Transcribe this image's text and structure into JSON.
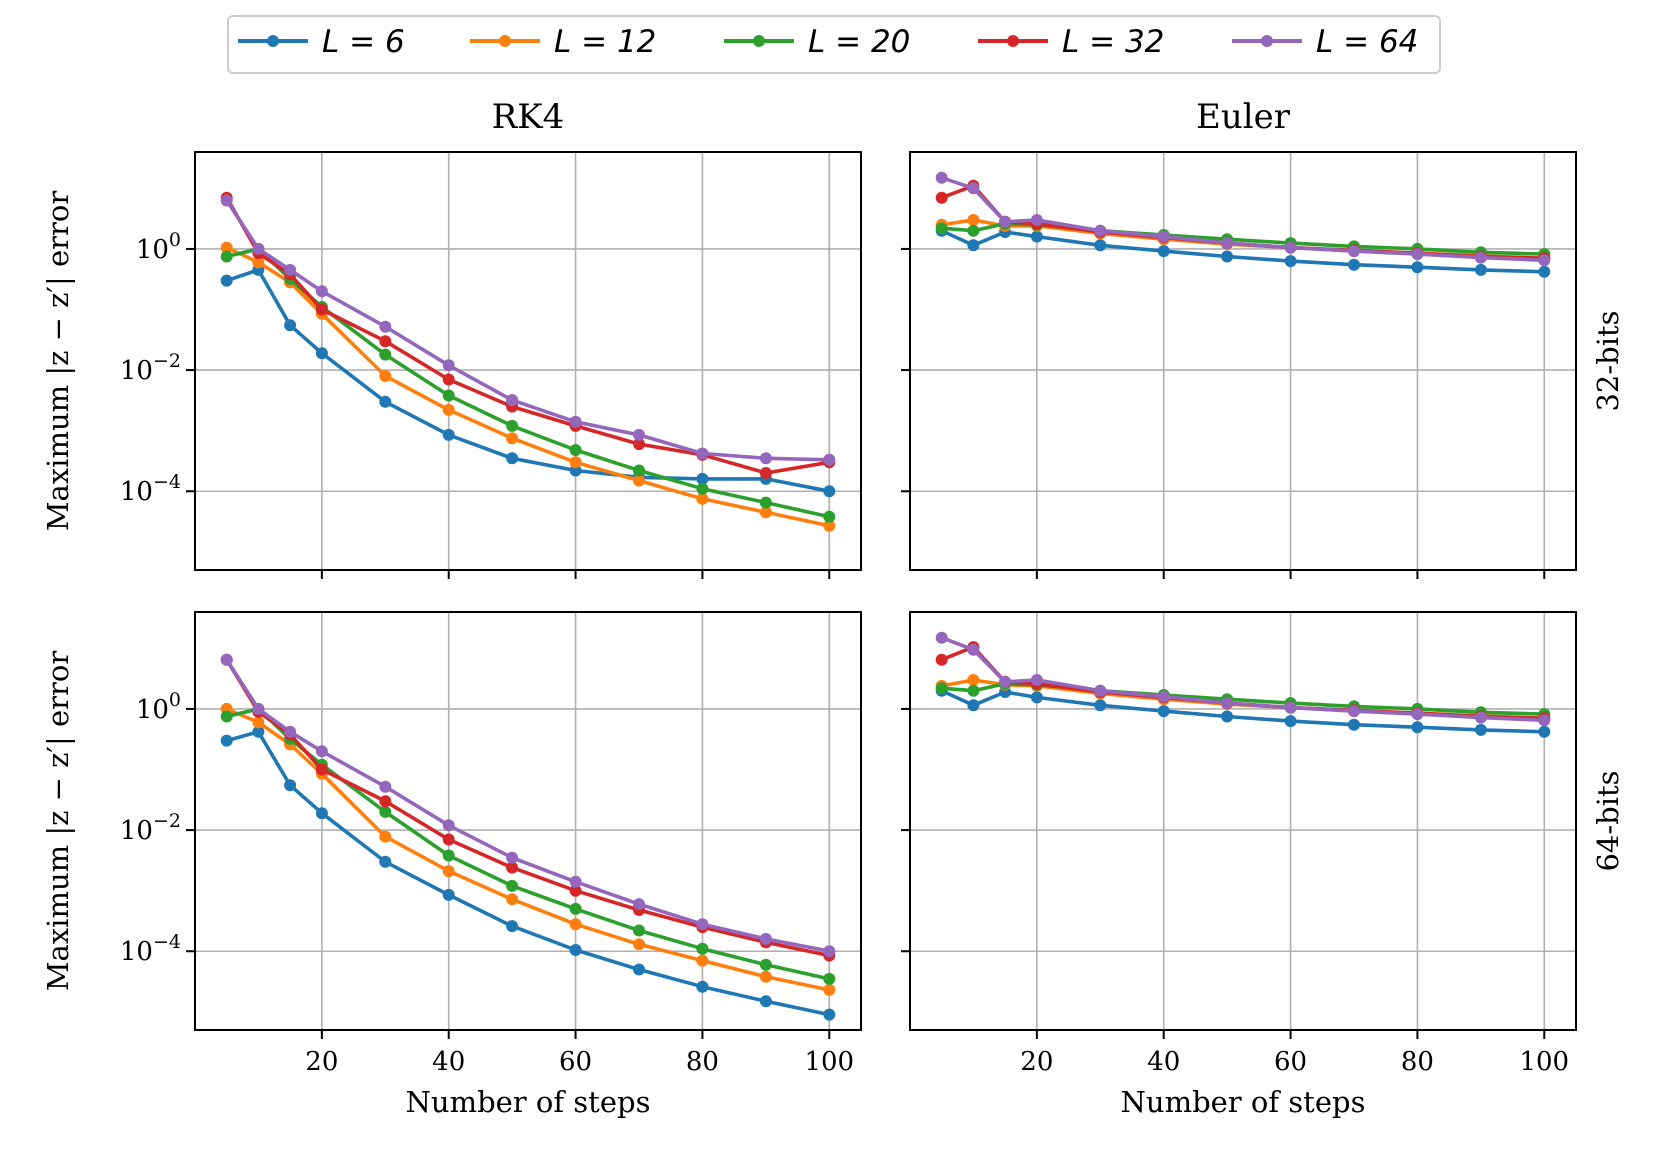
{
  "legend": {
    "entries": [
      {
        "label": "L = 6",
        "color": "#1f77b4"
      },
      {
        "label": "L = 12",
        "color": "#ff7f0e"
      },
      {
        "label": "L = 20",
        "color": "#2ca02c"
      },
      {
        "label": "L = 32",
        "color": "#d62728"
      },
      {
        "label": "L = 64",
        "color": "#9467bd"
      }
    ],
    "placement": "top-center"
  },
  "chart_data": [
    {
      "type": "line",
      "title": "RK4",
      "row_label": "32-bits",
      "xlabel": "",
      "ylabel": "Maximum |z − z′| error",
      "yscale": "log",
      "xlim": [
        0,
        105
      ],
      "ylim_log10": [
        -5.3,
        1.6
      ],
      "xticks": [
        20,
        40,
        60,
        80,
        100
      ],
      "xtick_labels": [
        "20",
        "40",
        "60",
        "80",
        "100"
      ],
      "yticks_exp": [
        "0",
        "−2",
        "−4"
      ],
      "yticks_log10": [
        0,
        -2,
        -4
      ],
      "grid": true,
      "x": [
        5,
        10,
        15,
        20,
        30,
        40,
        50,
        60,
        70,
        80,
        90,
        100
      ],
      "series": [
        {
          "name": "L = 6",
          "color": "#1f77b4",
          "values": [
            0.3,
            0.45,
            0.055,
            0.019,
            0.003,
            0.00085,
            0.00035,
            0.00022,
            0.00017,
            0.00016,
            0.00016,
            0.0001
          ]
        },
        {
          "name": "L = 12",
          "color": "#ff7f0e",
          "values": [
            1.05,
            0.6,
            0.28,
            0.085,
            0.008,
            0.0022,
            0.00075,
            0.0003,
            0.00015,
            7.5e-05,
            4.5e-05,
            2.7e-05
          ]
        },
        {
          "name": "L = 20",
          "color": "#2ca02c",
          "values": [
            0.75,
            1.0,
            0.32,
            0.11,
            0.018,
            0.0038,
            0.0012,
            0.00048,
            0.00022,
            0.00011,
            6.5e-05,
            3.8e-05
          ]
        },
        {
          "name": "L = 32",
          "color": "#d62728",
          "values": [
            7.0,
            0.85,
            0.38,
            0.1,
            0.03,
            0.007,
            0.0025,
            0.0012,
            0.0006,
            0.0004,
            0.0002,
            0.0003
          ]
        },
        {
          "name": "L = 64",
          "color": "#9467bd",
          "values": [
            6.3,
            1.0,
            0.45,
            0.2,
            0.052,
            0.012,
            0.0032,
            0.0014,
            0.00085,
            0.00042,
            0.00035,
            0.00033
          ]
        }
      ]
    },
    {
      "type": "line",
      "title": "Euler",
      "row_label": "32-bits",
      "xlabel": "",
      "ylabel": "",
      "yscale": "log",
      "xlim": [
        0,
        105
      ],
      "ylim_log10": [
        -5.3,
        1.6
      ],
      "xticks": [
        20,
        40,
        60,
        80,
        100
      ],
      "xtick_labels": [
        "20",
        "40",
        "60",
        "80",
        "100"
      ],
      "yticks_exp": [
        "",
        "",
        ""
      ],
      "yticks_log10": [
        0,
        -2,
        -4
      ],
      "grid": true,
      "x": [
        5,
        10,
        15,
        20,
        30,
        40,
        50,
        60,
        70,
        80,
        90,
        100
      ],
      "series": [
        {
          "name": "L = 6",
          "color": "#1f77b4",
          "values": [
            2.0,
            1.15,
            1.9,
            1.6,
            1.15,
            0.92,
            0.75,
            0.63,
            0.55,
            0.5,
            0.45,
            0.42
          ]
        },
        {
          "name": "L = 12",
          "color": "#ff7f0e",
          "values": [
            2.5,
            3.0,
            2.4,
            2.4,
            1.8,
            1.45,
            1.2,
            1.05,
            0.92,
            0.85,
            0.77,
            0.7
          ]
        },
        {
          "name": "L = 20",
          "color": "#2ca02c",
          "values": [
            2.2,
            2.0,
            2.6,
            2.5,
            2.0,
            1.7,
            1.45,
            1.25,
            1.1,
            1.0,
            0.88,
            0.82
          ]
        },
        {
          "name": "L = 32",
          "color": "#d62728",
          "values": [
            7.0,
            11.0,
            2.8,
            2.6,
            1.9,
            1.55,
            1.25,
            1.05,
            0.95,
            0.85,
            0.75,
            0.7
          ]
        },
        {
          "name": "L = 64",
          "color": "#9467bd",
          "values": [
            15.0,
            10.0,
            2.8,
            3.0,
            2.0,
            1.6,
            1.25,
            1.05,
            0.92,
            0.82,
            0.72,
            0.65
          ]
        }
      ]
    },
    {
      "type": "line",
      "title": "",
      "row_label": "64-bits",
      "xlabel": "Number of steps",
      "ylabel": "Maximum |z − z′| error",
      "yscale": "log",
      "xlim": [
        0,
        105
      ],
      "ylim_log10": [
        -5.3,
        1.6
      ],
      "xticks": [
        20,
        40,
        60,
        80,
        100
      ],
      "xtick_labels": [
        "20",
        "40",
        "60",
        "80",
        "100"
      ],
      "yticks_exp": [
        "0",
        "−2",
        "−4"
      ],
      "yticks_log10": [
        0,
        -2,
        -4
      ],
      "grid": true,
      "x": [
        5,
        10,
        15,
        20,
        30,
        40,
        50,
        60,
        70,
        80,
        90,
        100
      ],
      "series": [
        {
          "name": "L = 6",
          "color": "#1f77b4",
          "values": [
            0.3,
            0.42,
            0.055,
            0.019,
            0.003,
            0.00085,
            0.00026,
            0.000105,
            5e-05,
            2.6e-05,
            1.5e-05,
            9e-06
          ]
        },
        {
          "name": "L = 12",
          "color": "#ff7f0e",
          "values": [
            1.0,
            0.6,
            0.26,
            0.085,
            0.0078,
            0.0021,
            0.00072,
            0.00028,
            0.00013,
            7e-05,
            3.8e-05,
            2.3e-05
          ]
        },
        {
          "name": "L = 20",
          "color": "#2ca02c",
          "values": [
            0.75,
            1.0,
            0.32,
            0.12,
            0.02,
            0.0038,
            0.0012,
            0.0005,
            0.00022,
            0.00011,
            6e-05,
            3.5e-05
          ]
        },
        {
          "name": "L = 32",
          "color": "#d62728",
          "values": [
            6.5,
            0.9,
            0.38,
            0.1,
            0.03,
            0.007,
            0.0024,
            0.001,
            0.00048,
            0.00025,
            0.00014,
            8.5e-05
          ]
        },
        {
          "name": "L = 64",
          "color": "#9467bd",
          "values": [
            6.5,
            1.0,
            0.42,
            0.2,
            0.052,
            0.012,
            0.0035,
            0.0014,
            0.0006,
            0.00028,
            0.00016,
            0.0001
          ]
        }
      ]
    },
    {
      "type": "line",
      "title": "",
      "row_label": "64-bits",
      "xlabel": "Number of steps",
      "ylabel": "",
      "yscale": "log",
      "xlim": [
        0,
        105
      ],
      "ylim_log10": [
        -5.3,
        1.6
      ],
      "xticks": [
        20,
        40,
        60,
        80,
        100
      ],
      "xtick_labels": [
        "20",
        "40",
        "60",
        "80",
        "100"
      ],
      "yticks_exp": [
        "",
        "",
        ""
      ],
      "yticks_log10": [
        0,
        -2,
        -4
      ],
      "grid": true,
      "x": [
        5,
        10,
        15,
        20,
        30,
        40,
        50,
        60,
        70,
        80,
        90,
        100
      ],
      "series": [
        {
          "name": "L = 6",
          "color": "#1f77b4",
          "values": [
            2.0,
            1.15,
            1.9,
            1.55,
            1.15,
            0.92,
            0.75,
            0.63,
            0.55,
            0.5,
            0.45,
            0.42
          ]
        },
        {
          "name": "L = 12",
          "color": "#ff7f0e",
          "values": [
            2.4,
            3.0,
            2.5,
            2.4,
            1.8,
            1.45,
            1.2,
            1.05,
            0.92,
            0.85,
            0.77,
            0.7
          ]
        },
        {
          "name": "L = 20",
          "color": "#2ca02c",
          "values": [
            2.2,
            2.0,
            2.6,
            2.5,
            2.0,
            1.7,
            1.45,
            1.25,
            1.1,
            1.0,
            0.88,
            0.82
          ]
        },
        {
          "name": "L = 32",
          "color": "#d62728",
          "values": [
            6.5,
            10.5,
            2.8,
            2.6,
            1.9,
            1.55,
            1.25,
            1.05,
            0.95,
            0.85,
            0.75,
            0.7
          ]
        },
        {
          "name": "L = 64",
          "color": "#9467bd",
          "values": [
            15.0,
            9.5,
            2.8,
            3.0,
            2.0,
            1.6,
            1.25,
            1.05,
            0.92,
            0.82,
            0.72,
            0.65
          ]
        }
      ]
    }
  ]
}
